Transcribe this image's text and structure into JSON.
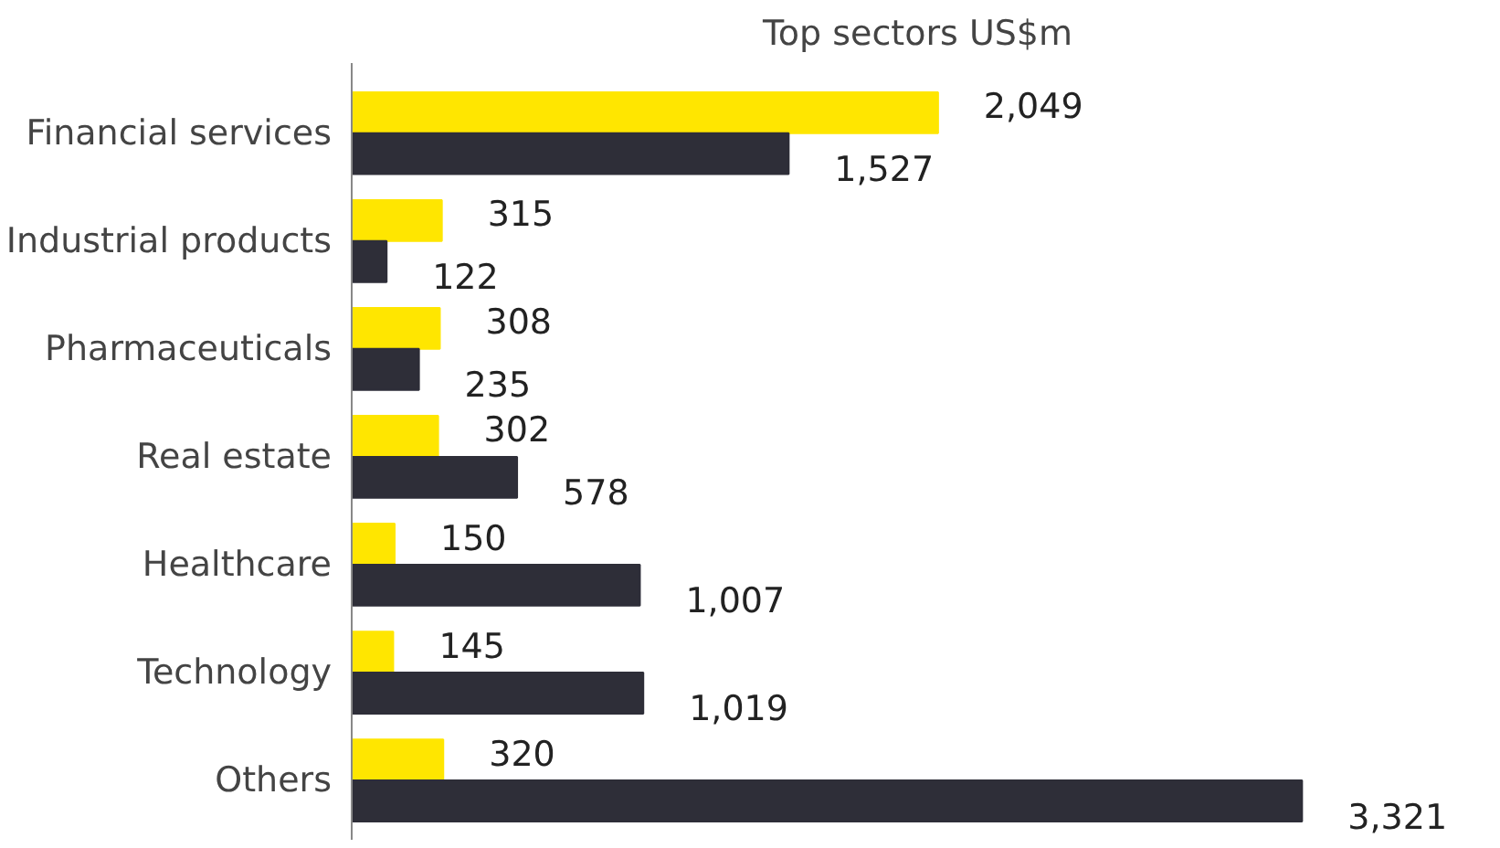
{
  "chart_data": {
    "type": "bar",
    "orientation": "horizontal",
    "title": "Top sectors US$m",
    "categories": [
      "Financial services",
      "Industrial products",
      "Pharmaceuticals",
      "Real estate",
      "Healthcare",
      "Technology",
      "Others"
    ],
    "series": [
      {
        "color": "#ffe600",
        "values": [
          2049,
          315,
          308,
          302,
          150,
          145,
          320
        ],
        "value_labels": [
          "2,049",
          "315",
          "308",
          "302",
          "150",
          "145",
          "320"
        ]
      },
      {
        "color": "#2e2e38",
        "values": [
          1527,
          122,
          235,
          578,
          1007,
          1019,
          3321
        ],
        "value_labels": [
          "1,527",
          "122",
          "235",
          "578",
          "1,007",
          "1,019",
          "3,321"
        ]
      }
    ],
    "tick_labels": "y",
    "grid": false
  }
}
